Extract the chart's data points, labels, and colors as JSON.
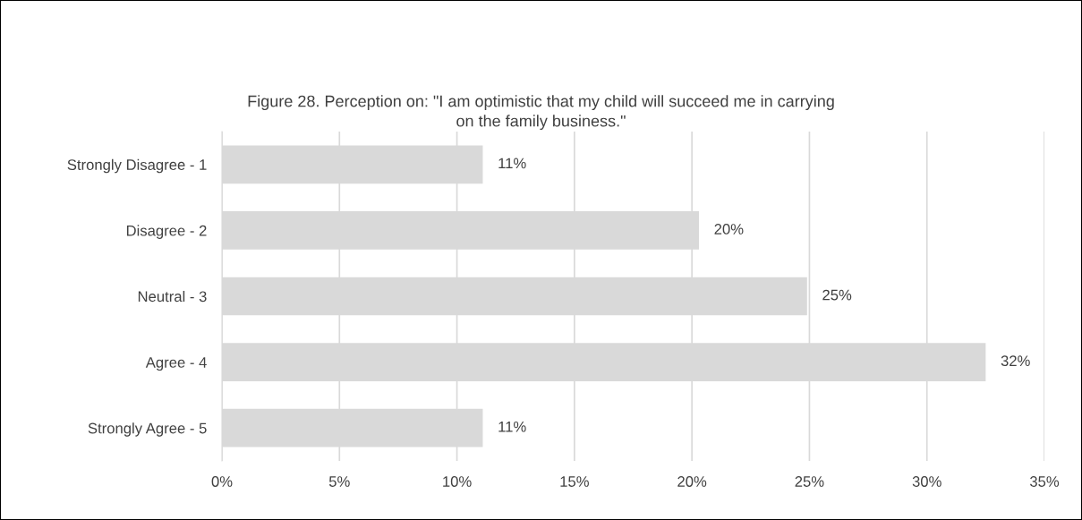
{
  "chart_data": {
    "type": "bar",
    "orientation": "horizontal",
    "title": "Figure 28. Perception on: \"I am optimistic that my child will succeed me in carrying on the family business.\"",
    "categories": [
      "Strongly Disagree - 1",
      "Disagree - 2",
      "Neutral - 3",
      "Agree - 4",
      "Strongly Agree - 5"
    ],
    "values": [
      11.1,
      20.3,
      24.9,
      32.5,
      11.1
    ],
    "value_labels": [
      "11%",
      "20%",
      "25%",
      "32%",
      "11%"
    ],
    "color": "#d9d9d9",
    "xlim": [
      0,
      35
    ],
    "xticks": [
      {
        "value": 0,
        "label": "0%"
      },
      {
        "value": 5,
        "label": "5%"
      },
      {
        "value": 10,
        "label": "10%"
      },
      {
        "value": 15,
        "label": "15%"
      },
      {
        "value": 20,
        "label": "20%"
      },
      {
        "value": 25,
        "label": "25%"
      },
      {
        "value": 30,
        "label": "30%"
      },
      {
        "value": 35,
        "label": "35%"
      }
    ],
    "grid": "x",
    "legend": false
  }
}
